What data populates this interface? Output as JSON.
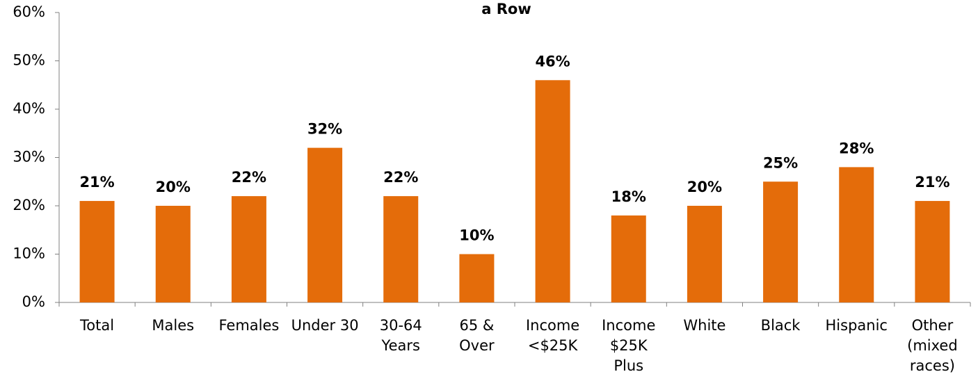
{
  "chart_data": {
    "type": "bar",
    "title": "a Row",
    "categories": [
      "Total",
      "Males",
      "Females",
      "Under 30",
      "30-64\nYears",
      "65 &\nOver",
      "Income\n<$25K",
      "Income\n$25K\nPlus",
      "White",
      "Black",
      "Hispanic",
      "Other\n(mixed\nraces)"
    ],
    "values": [
      21,
      20,
      22,
      32,
      22,
      10,
      46,
      18,
      20,
      25,
      28,
      21
    ],
    "value_labels": [
      "21%",
      "20%",
      "22%",
      "32%",
      "22%",
      "10%",
      "46%",
      "18%",
      "20%",
      "25%",
      "28%",
      "21%"
    ],
    "color": "#e46c0a",
    "ylim": [
      0,
      60
    ],
    "yticks": [
      {
        "value": 0,
        "label": "0%"
      },
      {
        "value": 10,
        "label": "10%"
      },
      {
        "value": 20,
        "label": "20%"
      },
      {
        "value": 30,
        "label": "30%"
      },
      {
        "value": 40,
        "label": "40%"
      },
      {
        "value": 50,
        "label": "50%"
      },
      {
        "value": 60,
        "label": "60%"
      }
    ],
    "grid": false
  }
}
